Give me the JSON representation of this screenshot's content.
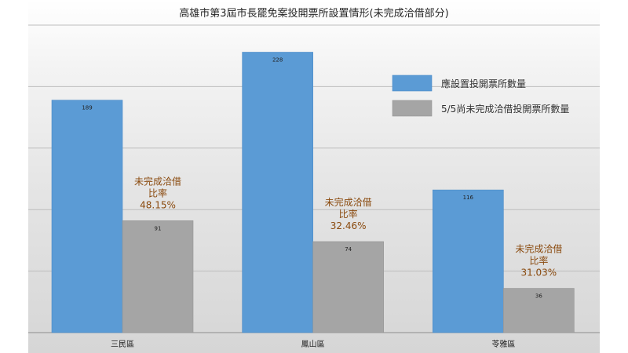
{
  "chart_data": {
    "type": "bar",
    "title": "高雄市第3屆市長罷免案投開票所設置情形(未完成洽借部分)",
    "categories": [
      "三民區",
      "鳳山區",
      "苓雅區"
    ],
    "series": [
      {
        "name": "應設置投開票所數量",
        "values": [
          189,
          228,
          116
        ],
        "color": "#5b9bd5"
      },
      {
        "name": "5/5尚未完成洽借投開票所數量",
        "values": [
          91,
          74,
          36
        ],
        "color": "#a5a5a5"
      }
    ],
    "annotations": [
      {
        "lines": [
          "未完成洽借",
          "比率",
          "48.15%"
        ]
      },
      {
        "lines": [
          "未完成洽借",
          "比率",
          "32.46%"
        ]
      },
      {
        "lines": [
          "未完成洽借",
          "比率",
          "31.03%"
        ]
      }
    ],
    "ylim": [
      0,
      250
    ],
    "grid": true,
    "legend_position": "right",
    "colors": {
      "annotation": "#8a4a0e",
      "grid": "#bdbdbd"
    }
  }
}
